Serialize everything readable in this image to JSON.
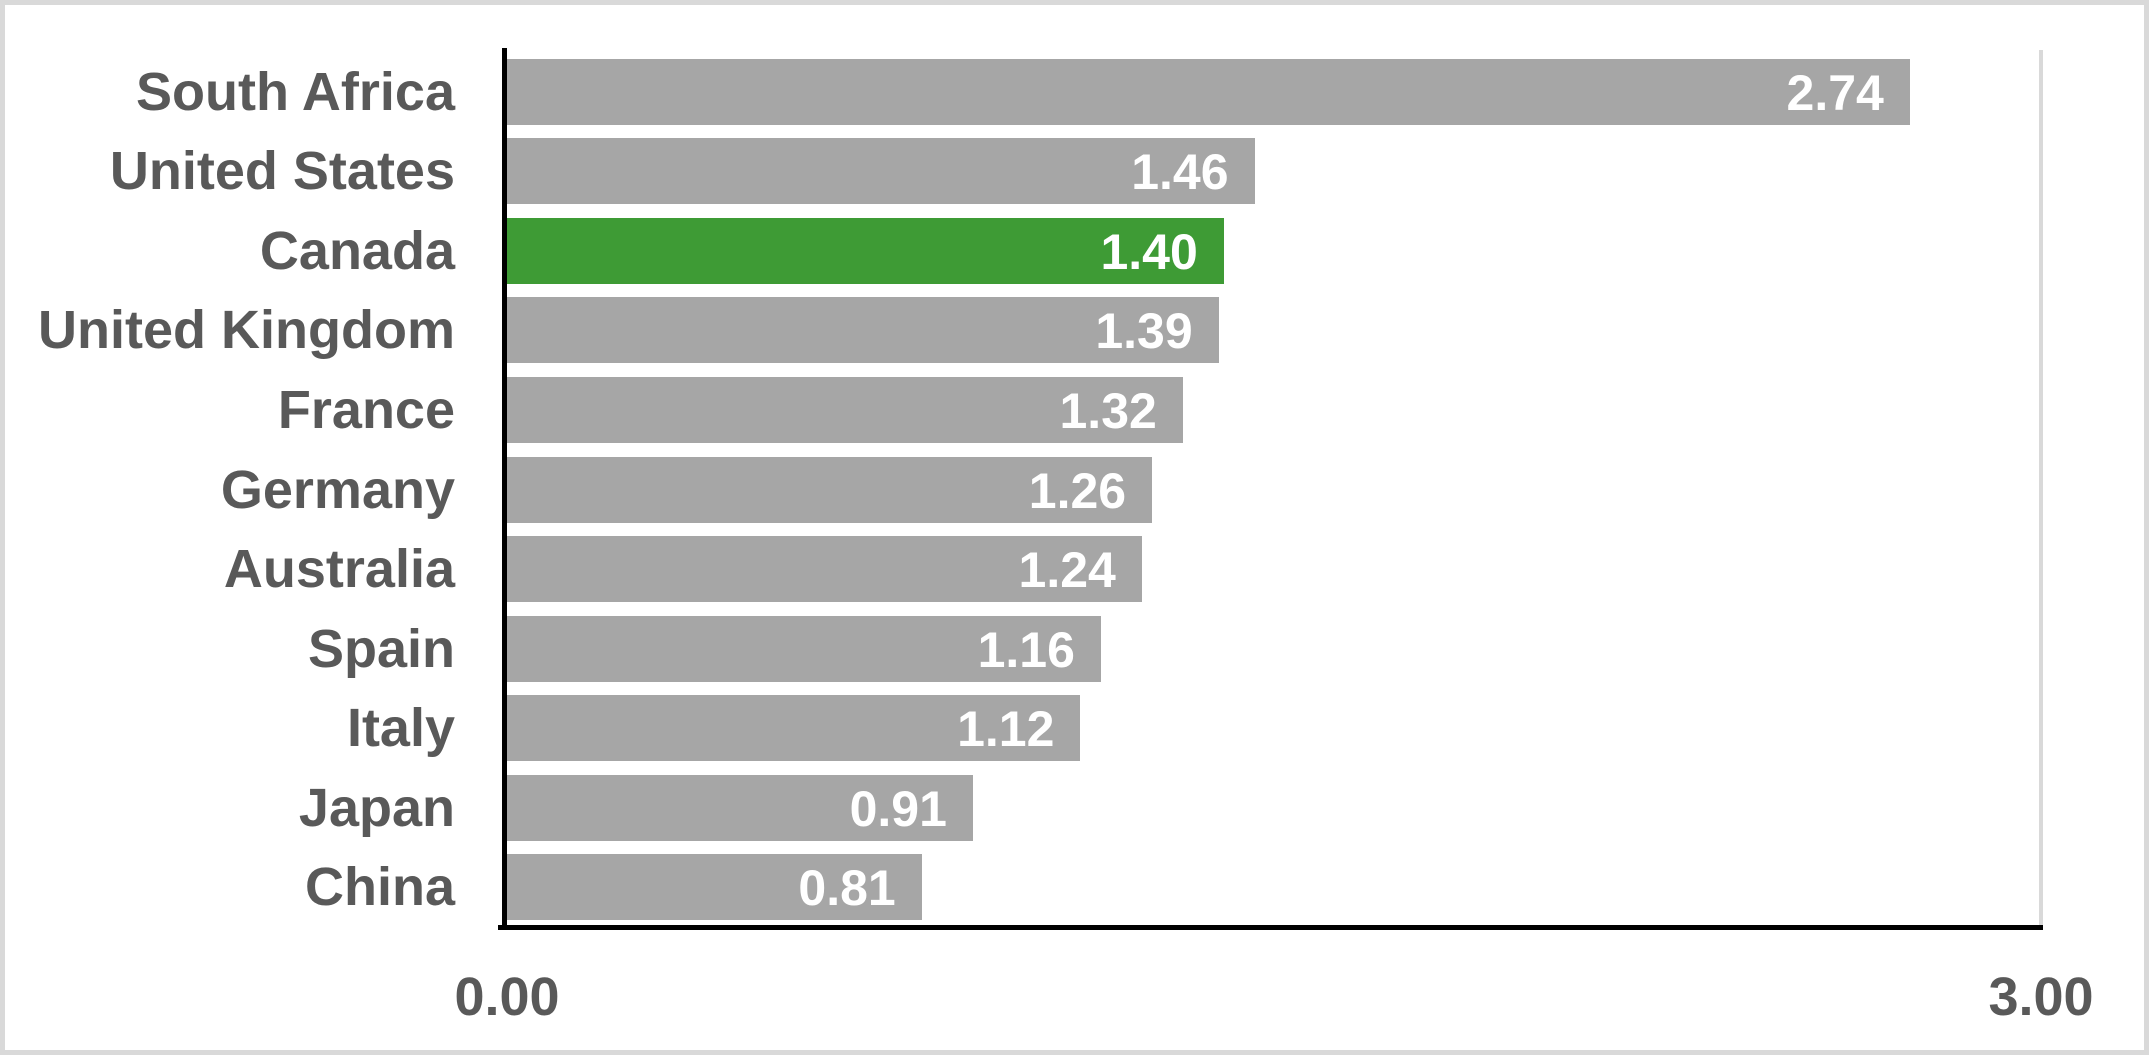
{
  "chart_data": {
    "type": "bar",
    "orientation": "horizontal",
    "title": "",
    "categories": [
      "South Africa",
      "United States",
      "Canada",
      "United Kingdom",
      "France",
      "Germany",
      "Australia",
      "Spain",
      "Italy",
      "Japan",
      "China"
    ],
    "values": [
      2.74,
      1.46,
      1.4,
      1.39,
      1.32,
      1.26,
      1.24,
      1.16,
      1.12,
      0.91,
      0.81
    ],
    "value_label_format": "2-decimals",
    "highlighted_category": "Canada",
    "xlim": [
      0,
      3
    ],
    "x_tick_labels": [
      "0.00",
      "3.00"
    ],
    "legend": "none",
    "grid": "single-line-at-max",
    "colors": {
      "bar": "#a6a6a6",
      "highlight": "#3e9b35",
      "category_text": "#595959",
      "value_text": "#ffffff",
      "tick_text": "#595959",
      "axis_line": "#000000",
      "gridline": "#d9d9d9",
      "frame_border": "#d9d9d9",
      "background": "#ffffff"
    }
  }
}
